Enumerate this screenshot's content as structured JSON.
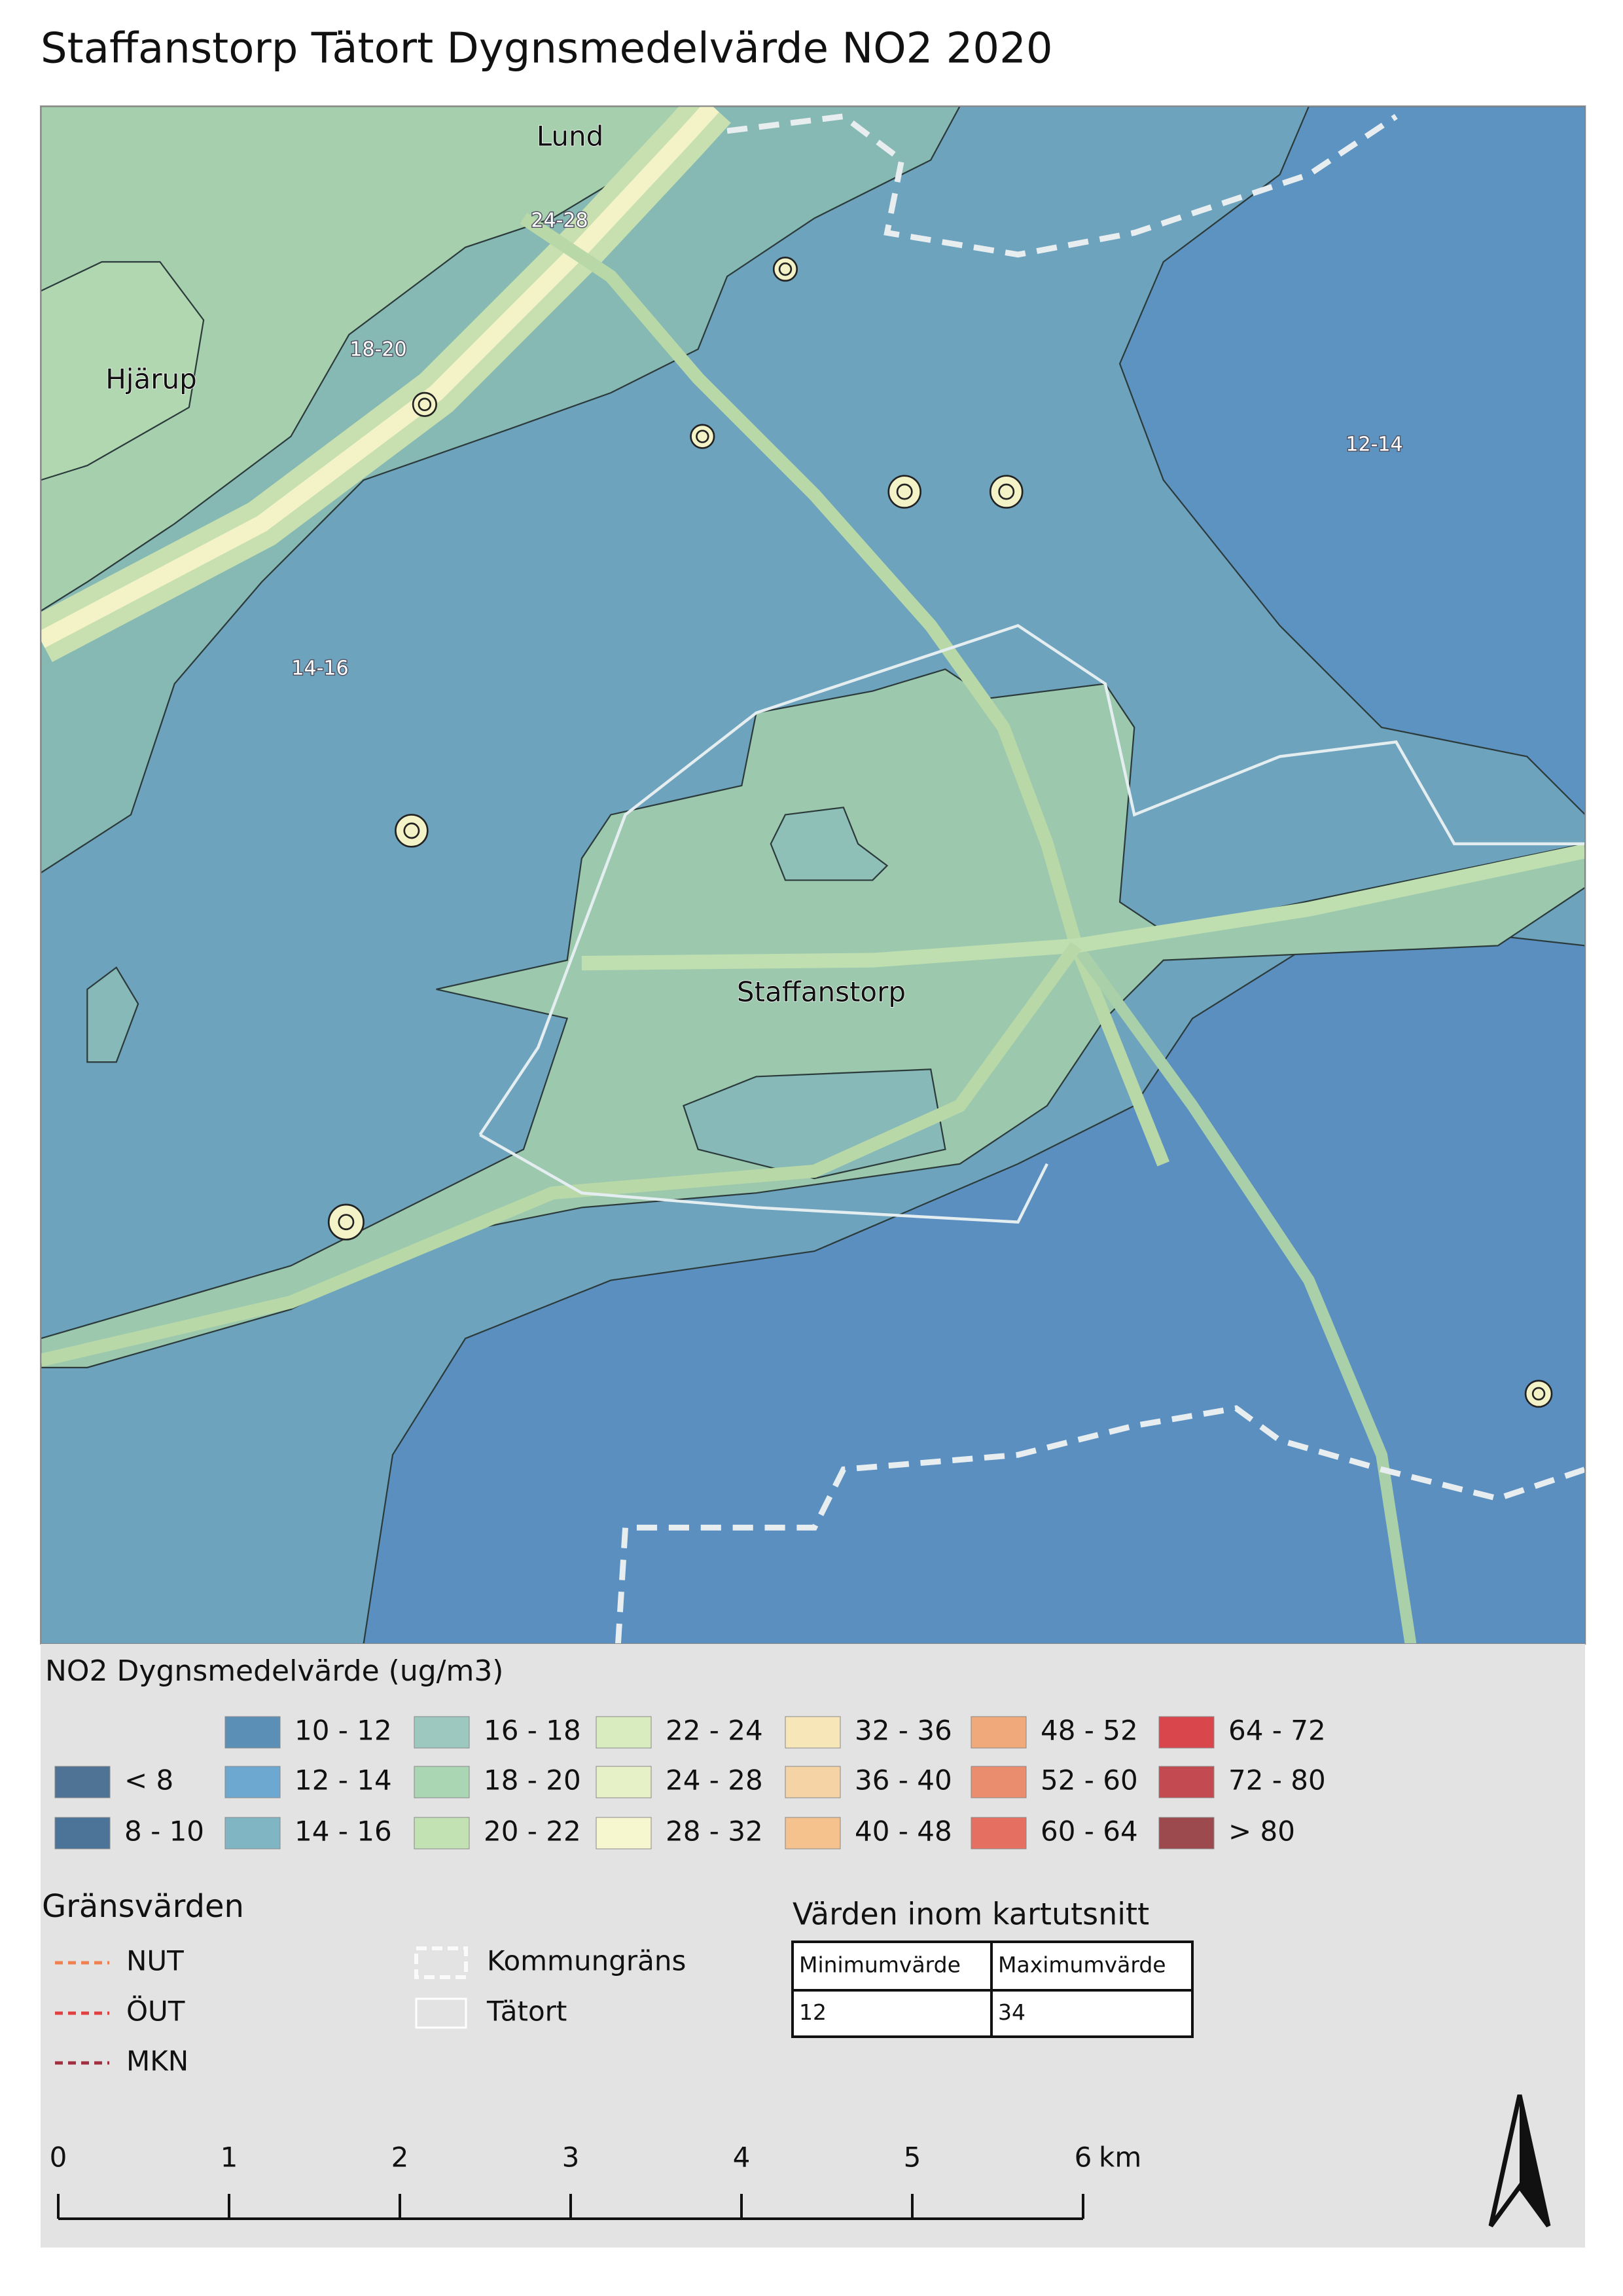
{
  "title": "Staffanstorp Tätort Dygnsmedelvärde NO2 2020",
  "map": {
    "places": [
      "Lund",
      "Hjärup",
      "Staffanstorp"
    ],
    "contour_labels": [
      "24-28",
      "18-20",
      "14-16",
      "12-14"
    ]
  },
  "legend": {
    "title": "NO2 Dygnsmedelvärde (ug/m3)",
    "items": [
      {
        "label": "< 8",
        "color": "#4f7394"
      },
      {
        "label": "8 - 10",
        "color": "#4c7499"
      },
      {
        "label": "10 - 12",
        "color": "#5b8fb5"
      },
      {
        "label": "12 - 14",
        "color": "#6ca8d0"
      },
      {
        "label": "14 - 16",
        "color": "#80b5c4"
      },
      {
        "label": "16 - 18",
        "color": "#9cc8c0"
      },
      {
        "label": "18 - 20",
        "color": "#abd6b4"
      },
      {
        "label": "20 - 22",
        "color": "#c3e2b4"
      },
      {
        "label": "22 - 24",
        "color": "#d9ecc0"
      },
      {
        "label": "24 - 28",
        "color": "#e7f1c8"
      },
      {
        "label": "28 - 32",
        "color": "#f7f7cf"
      },
      {
        "label": "32 - 36",
        "color": "#f7e7b8"
      },
      {
        "label": "36 - 40",
        "color": "#f5d3a4"
      },
      {
        "label": "40 - 48",
        "color": "#f5c28e"
      },
      {
        "label": "48 - 52",
        "color": "#f0a97a"
      },
      {
        "label": "52 - 60",
        "color": "#ea8c6e"
      },
      {
        "label": "60 - 64",
        "color": "#e56f60"
      },
      {
        "label": "64 - 72",
        "color": "#d9474c"
      },
      {
        "label": "72 - 80",
        "color": "#c34a50"
      },
      {
        "label": "> 80",
        "color": "#9c4a4e"
      }
    ]
  },
  "limits": {
    "title": "Gränsvärden",
    "items": [
      {
        "label": "NUT",
        "color": "#f08050"
      },
      {
        "label": "ÖUT",
        "color": "#e04040"
      },
      {
        "label": "MKN",
        "color": "#a03040"
      }
    ]
  },
  "boundaries": [
    {
      "label": "Kommungräns"
    },
    {
      "label": "Tätort"
    }
  ],
  "table": {
    "title": "Värden inom kartutsnitt",
    "header": [
      "Minimumvärde",
      "Maximumvärde"
    ],
    "rows": [
      [
        "12",
        "34"
      ]
    ]
  },
  "scale": {
    "ticks": [
      0,
      1,
      2,
      3,
      4,
      5,
      6
    ],
    "unit": "km"
  }
}
